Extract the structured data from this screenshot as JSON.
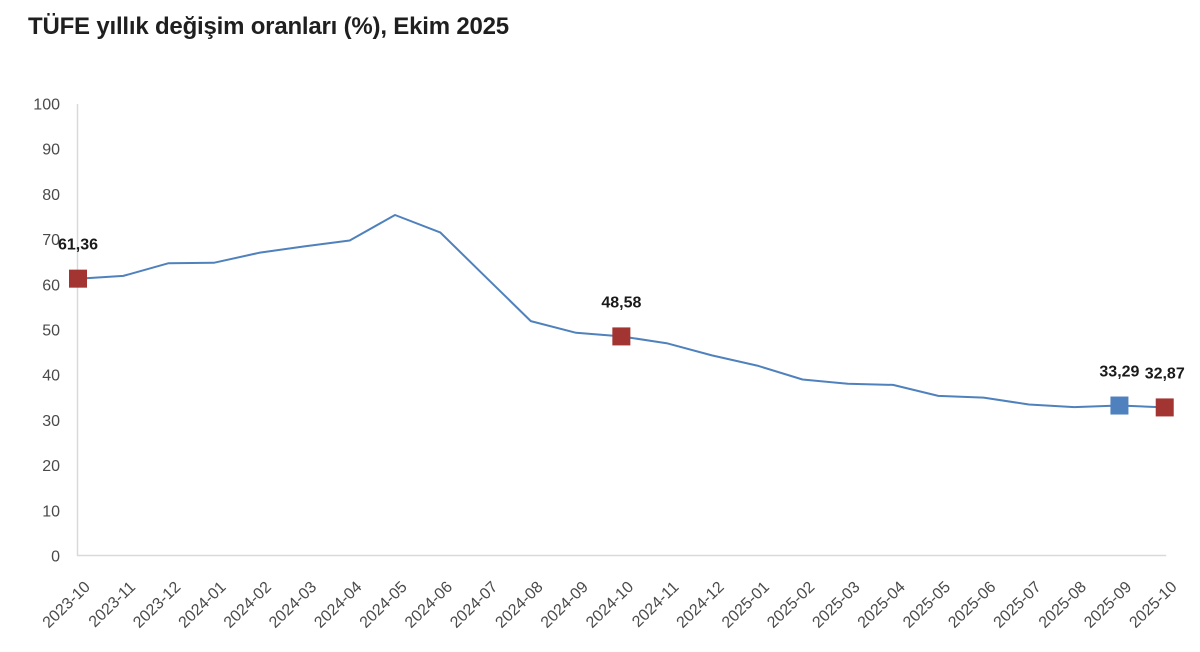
{
  "title": "TÜFE yıllık değişim oranları (%), Ekim 2025",
  "chart_data": {
    "type": "line",
    "title": "TÜFE yıllık değişim oranları (%), Ekim 2025",
    "categories": [
      "2023-10",
      "2023-11",
      "2023-12",
      "2024-01",
      "2024-02",
      "2024-03",
      "2024-04",
      "2024-05",
      "2024-06",
      "2024-07",
      "2024-08",
      "2024-09",
      "2024-10",
      "2024-11",
      "2024-12",
      "2025-01",
      "2025-02",
      "2025-03",
      "2025-04",
      "2025-05",
      "2025-06",
      "2025-07",
      "2025-08",
      "2025-09",
      "2025-10"
    ],
    "series": [
      {
        "name": "TÜFE yıllık değişim oranı (%)",
        "values": [
          61.36,
          61.98,
          64.77,
          64.86,
          67.07,
          68.5,
          69.8,
          75.45,
          71.6,
          61.78,
          51.97,
          49.38,
          48.58,
          47.09,
          44.38,
          42.12,
          39.05,
          38.1,
          37.86,
          35.41,
          35.05,
          33.52,
          32.95,
          33.29,
          32.87
        ]
      }
    ],
    "xlabel": "",
    "ylabel": "",
    "ylim": [
      0,
      100
    ],
    "ytick_step": 10,
    "ytick_labels": [
      "0",
      "10",
      "20",
      "30",
      "40",
      "50",
      "60",
      "70",
      "80",
      "90",
      "100"
    ],
    "grid": false,
    "legend_position": "none",
    "line_color": "#4f81bd",
    "axis_color": "#d9d9d9",
    "tick_text_color": "#4a4a4a",
    "point_label_color": "#1a1a1a",
    "title_color": "#1f1f1f",
    "background_color": "#ffffff",
    "highlighted_points": [
      {
        "category": "2023-10",
        "value": 61.36,
        "label": "61,36",
        "marker_color": "#a23431"
      },
      {
        "category": "2024-10",
        "value": 48.58,
        "label": "48,58",
        "marker_color": "#a23431"
      },
      {
        "category": "2025-09",
        "value": 33.29,
        "label": "33,29",
        "marker_color": "#4e81bd"
      },
      {
        "category": "2025-10",
        "value": 32.87,
        "label": "32,87",
        "marker_color": "#a23431"
      }
    ]
  }
}
